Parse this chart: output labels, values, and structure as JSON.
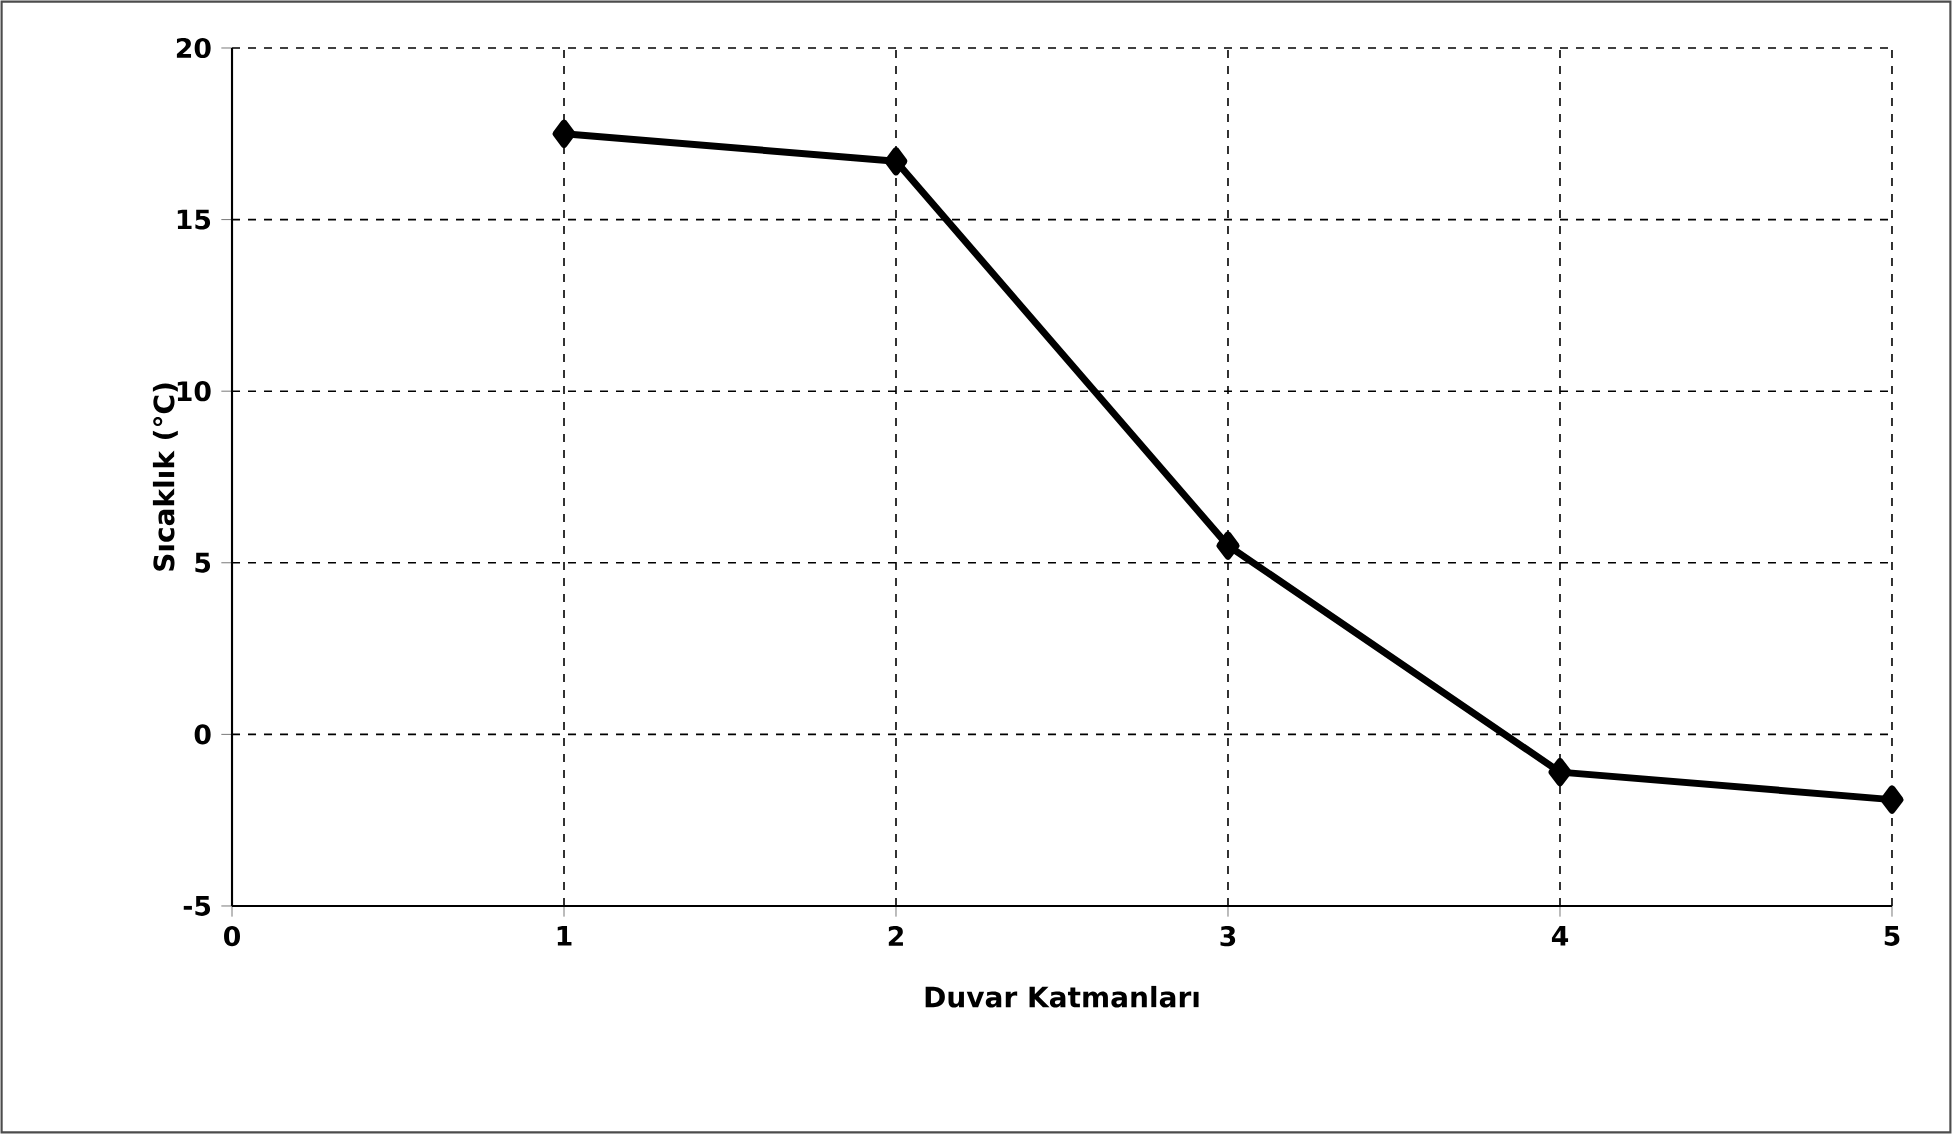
{
  "chart_data": {
    "type": "line",
    "xlabel": "Duvar Katmanları",
    "ylabel": "Sıcaklık (°C)",
    "x": [
      1,
      2,
      3,
      4,
      5
    ],
    "series": [
      {
        "color": "#000000",
        "values": [
          17.5,
          16.7,
          5.5,
          -1.1,
          -1.9
        ]
      }
    ],
    "xlim": [
      0,
      5
    ],
    "ylim": [
      -5,
      20
    ],
    "xticks": [
      0,
      1,
      2,
      3,
      4,
      5
    ],
    "yticks": [
      -5,
      0,
      5,
      10,
      15,
      20
    ],
    "grid": true,
    "marker": "diamond",
    "line_style": "solid"
  }
}
